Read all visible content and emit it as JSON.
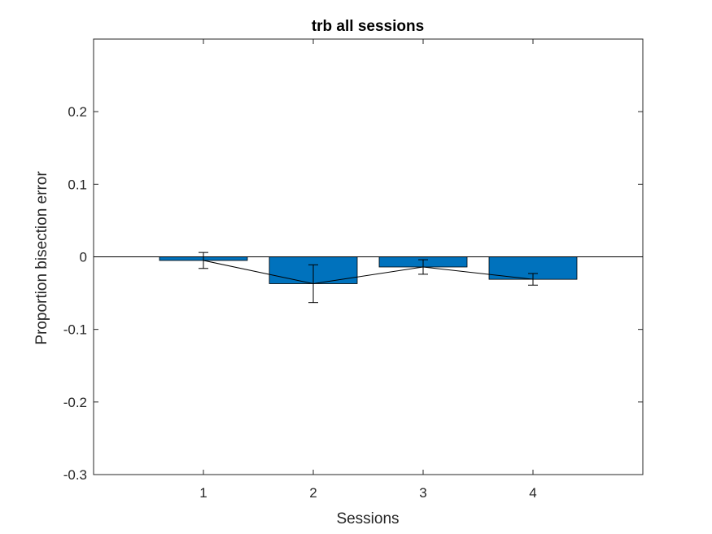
{
  "chart_data": {
    "type": "bar",
    "title": "trb all sessions",
    "xlabel": "Sessions",
    "ylabel": "Proportion bisection error",
    "categories": [
      "1",
      "2",
      "3",
      "4"
    ],
    "x_values": [
      1,
      2,
      3,
      4
    ],
    "xlim": [
      0,
      5
    ],
    "ylim": [
      -0.3,
      0.3
    ],
    "y_ticks": [
      -0.3,
      -0.2,
      -0.1,
      0,
      0.1,
      0.2
    ],
    "y_tick_labels": [
      "-0.3",
      "-0.2",
      "-0.1",
      "0",
      "0.1",
      "0.2"
    ],
    "series": [
      {
        "values": [
          -0.005,
          -0.037,
          -0.014,
          -0.031
        ],
        "error": [
          0.011,
          0.026,
          0.01,
          0.008
        ]
      }
    ],
    "overlay_line": "connects bar means",
    "zero_line": true,
    "grid": false,
    "legend": "none",
    "colors": {
      "bar_fill": "#0072BD",
      "bar_edge": "#000000",
      "axis": "#262626",
      "line": "#000000"
    }
  }
}
